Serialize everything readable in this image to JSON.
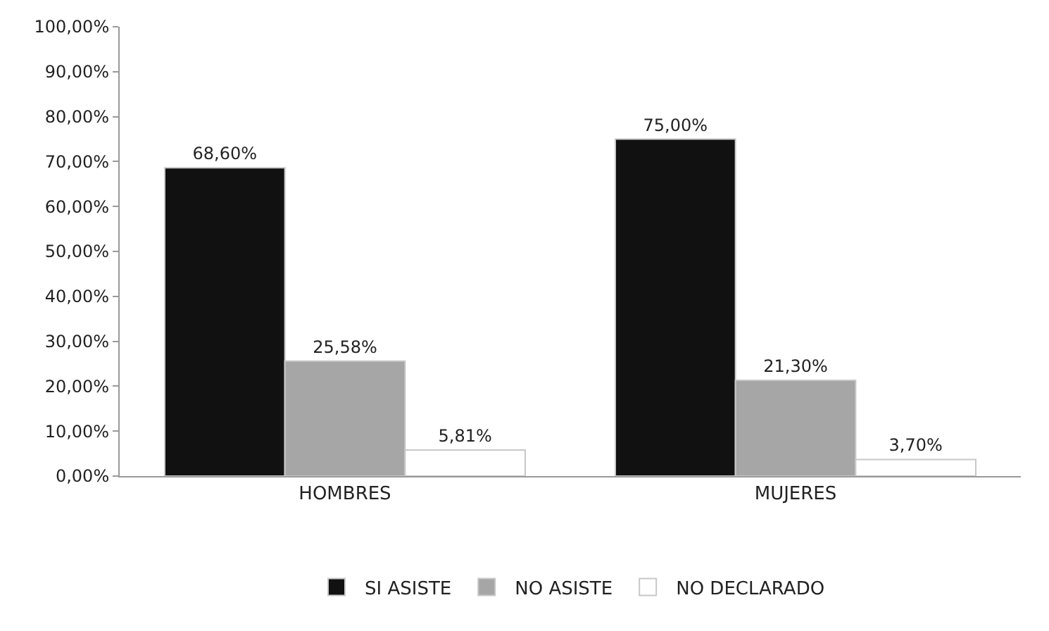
{
  "chart_data": {
    "type": "bar",
    "categories": [
      "HOMBRES",
      "MUJERES"
    ],
    "series": [
      {
        "name": "SI ASISTE",
        "color": "#111111",
        "values": [
          68.6,
          75.0
        ],
        "value_labels": [
          "68,60%",
          "75,00%"
        ]
      },
      {
        "name": "NO ASISTE",
        "color": "#a6a6a6",
        "values": [
          25.58,
          21.3
        ],
        "value_labels": [
          "25,58%",
          "21,30%"
        ]
      },
      {
        "name": "NO DECLARADO",
        "color": "#ffffff",
        "values": [
          5.81,
          3.7
        ],
        "value_labels": [
          "5,81%",
          "3,70%"
        ]
      }
    ],
    "ylim": [
      0,
      100
    ],
    "yticks": [
      {
        "value": 0,
        "label": "0,00%"
      },
      {
        "value": 10,
        "label": "10,00%"
      },
      {
        "value": 20,
        "label": "20,00%"
      },
      {
        "value": 30,
        "label": "30,00%"
      },
      {
        "value": 40,
        "label": "40,00%"
      },
      {
        "value": 50,
        "label": "50,00%"
      },
      {
        "value": 60,
        "label": "60,00%"
      },
      {
        "value": 70,
        "label": "70,00%"
      },
      {
        "value": 80,
        "label": "80,00%"
      },
      {
        "value": 90,
        "label": "90,00%"
      },
      {
        "value": 100,
        "label": "100,00%"
      }
    ],
    "grid": false,
    "legend": "bottom"
  }
}
